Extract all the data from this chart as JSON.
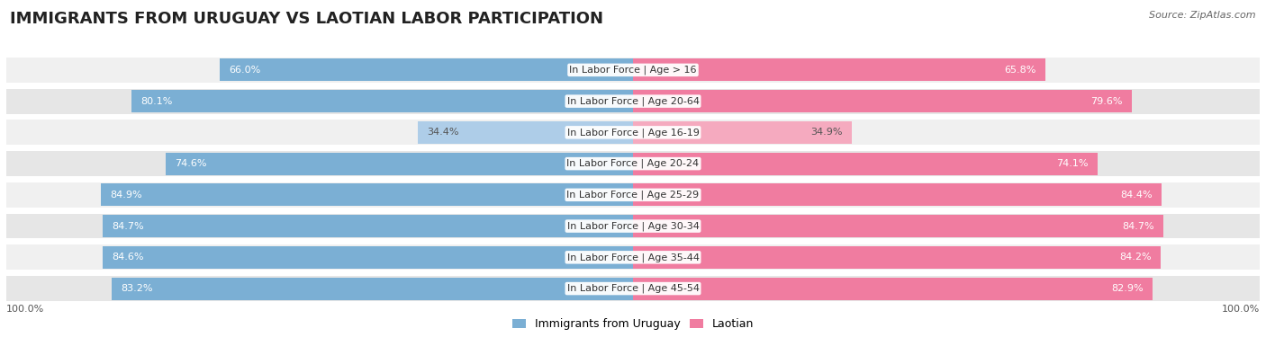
{
  "title": "IMMIGRANTS FROM URUGUAY VS LAOTIAN LABOR PARTICIPATION",
  "source": "Source: ZipAtlas.com",
  "categories": [
    "In Labor Force | Age > 16",
    "In Labor Force | Age 20-64",
    "In Labor Force | Age 16-19",
    "In Labor Force | Age 20-24",
    "In Labor Force | Age 25-29",
    "In Labor Force | Age 30-34",
    "In Labor Force | Age 35-44",
    "In Labor Force | Age 45-54"
  ],
  "uruguay_values": [
    66.0,
    80.1,
    34.4,
    74.6,
    84.9,
    84.7,
    84.6,
    83.2
  ],
  "laotian_values": [
    65.8,
    79.6,
    34.9,
    74.1,
    84.4,
    84.7,
    84.2,
    82.9
  ],
  "uruguay_color": "#7bafd4",
  "laotian_color": "#f07ca0",
  "uruguay_color_light": "#aecde8",
  "laotian_color_light": "#f5aabf",
  "row_bg_colors": [
    "#f0f0f0",
    "#e6e6e6"
  ],
  "max_value": 100.0,
  "legend_uruguay": "Immigrants from Uruguay",
  "legend_laotian": "Laotian",
  "title_fontsize": 13,
  "label_fontsize": 8.0,
  "value_fontsize": 8.0,
  "axis_fontsize": 8,
  "background_color": "#ffffff"
}
